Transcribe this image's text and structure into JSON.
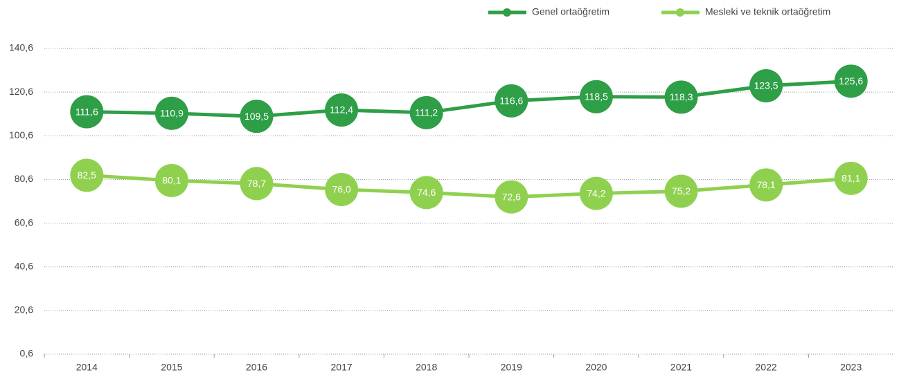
{
  "chart_data": {
    "type": "line",
    "categories": [
      "2014",
      "2015",
      "2016",
      "2017",
      "2018",
      "2019",
      "2020",
      "2021",
      "2022",
      "2023"
    ],
    "series": [
      {
        "name": "Genel ortaöğretim",
        "color": "#2e9e47",
        "values": [
          111.6,
          110.9,
          109.5,
          112.4,
          111.2,
          116.6,
          118.5,
          118.3,
          123.5,
          125.6
        ],
        "value_labels": [
          "111,6",
          "110,9",
          "109,5",
          "112,4",
          "111,2",
          "116,6",
          "118,5",
          "118,3",
          "123,5",
          "125,6"
        ]
      },
      {
        "name": "Mesleki ve teknik ortaöğretim",
        "color": "#8fd14f",
        "values": [
          82.5,
          80.1,
          78.7,
          76.0,
          74.6,
          72.6,
          74.2,
          75.2,
          78.1,
          81.1
        ],
        "value_labels": [
          "82,5",
          "80,1",
          "78,7",
          "76,0",
          "74,6",
          "72,6",
          "74,2",
          "75,2",
          "78,1",
          "81,1"
        ]
      }
    ],
    "ylim": [
      0.6,
      140.6
    ],
    "yticks": [
      {
        "value": 0.6,
        "label": "0,6"
      },
      {
        "value": 20.6,
        "label": "20,6"
      },
      {
        "value": 40.6,
        "label": "40,6"
      },
      {
        "value": 60.6,
        "label": "60,6"
      },
      {
        "value": 80.6,
        "label": "80,6"
      },
      {
        "value": 100.6,
        "label": "100,6"
      },
      {
        "value": 120.6,
        "label": "120,6"
      },
      {
        "value": 140.6,
        "label": "140,6"
      }
    ],
    "grid": true,
    "legend": "top"
  }
}
